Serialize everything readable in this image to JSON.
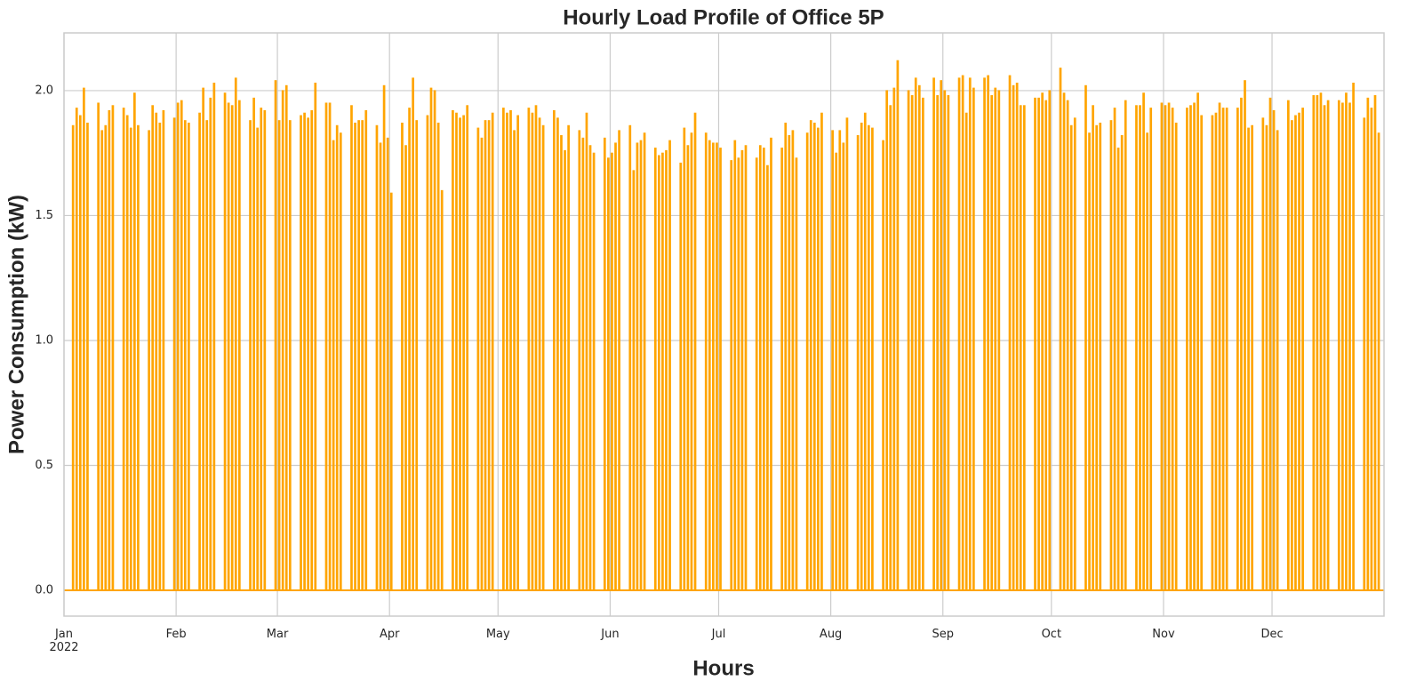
{
  "chart_data": {
    "type": "bar",
    "title": "Hourly Load Profile of Office 5P",
    "xlabel": "Hours",
    "ylabel": "Power Consumption (kW)",
    "color": "#ffa500",
    "grid": true,
    "xlim": [
      0,
      8759
    ],
    "ylim": [
      -0.103,
      2.231
    ],
    "xticks": [
      {
        "value": 0,
        "label": "Jan\n2022"
      },
      {
        "value": 744,
        "label": "Feb"
      },
      {
        "value": 1416,
        "label": "Mar"
      },
      {
        "value": 2160,
        "label": "Apr"
      },
      {
        "value": 2880,
        "label": "May"
      },
      {
        "value": 3624,
        "label": "Jun"
      },
      {
        "value": 4344,
        "label": "Jul"
      },
      {
        "value": 5088,
        "label": "Aug"
      },
      {
        "value": 5832,
        "label": "Sep"
      },
      {
        "value": 6552,
        "label": "Oct"
      },
      {
        "value": 7296,
        "label": "Nov"
      },
      {
        "value": 8016,
        "label": "Dec"
      }
    ],
    "yticks": [
      {
        "value": 0,
        "label": "0.0"
      },
      {
        "value": 0.5,
        "label": "0.5"
      },
      {
        "value": 1,
        "label": "1.0"
      },
      {
        "value": 1.5,
        "label": "1.5"
      },
      {
        "value": 2,
        "label": "2.0"
      }
    ],
    "x": [
      55,
      79,
      103,
      127,
      151,
      223,
      247,
      271,
      295,
      319,
      391,
      415,
      439,
      463,
      487,
      559,
      583,
      607,
      631,
      655,
      727,
      751,
      775,
      799,
      823,
      895,
      919,
      943,
      967,
      991,
      1063,
      1087,
      1111,
      1135,
      1159,
      1231,
      1255,
      1279,
      1303,
      1327,
      1399,
      1423,
      1447,
      1471,
      1495,
      1567,
      1591,
      1615,
      1639,
      1663,
      1735,
      1759,
      1783,
      1807,
      1831,
      1903,
      1927,
      1951,
      1975,
      1999,
      2071,
      2095,
      2119,
      2143,
      2167,
      2239,
      2263,
      2287,
      2311,
      2335,
      2407,
      2431,
      2455,
      2479,
      2503,
      2575,
      2599,
      2623,
      2647,
      2671,
      2743,
      2767,
      2791,
      2815,
      2839,
      2911,
      2935,
      2959,
      2983,
      3007,
      3079,
      3103,
      3127,
      3151,
      3175,
      3247,
      3271,
      3295,
      3319,
      3343,
      3415,
      3439,
      3463,
      3487,
      3511,
      3583,
      3607,
      3631,
      3655,
      3679,
      3751,
      3775,
      3799,
      3823,
      3847,
      3919,
      3943,
      3967,
      3991,
      4015,
      4087,
      4111,
      4135,
      4159,
      4183,
      4255,
      4279,
      4303,
      4327,
      4351,
      4423,
      4447,
      4471,
      4495,
      4519,
      4591,
      4615,
      4639,
      4663,
      4687,
      4759,
      4783,
      4807,
      4831,
      4855,
      4927,
      4951,
      4975,
      4999,
      5023,
      5095,
      5119,
      5143,
      5167,
      5191,
      5263,
      5287,
      5311,
      5335,
      5359,
      5431,
      5455,
      5479,
      5503,
      5527,
      5599,
      5623,
      5647,
      5671,
      5695,
      5767,
      5791,
      5815,
      5839,
      5863,
      5935,
      5959,
      5983,
      6007,
      6031,
      6103,
      6127,
      6151,
      6175,
      6199,
      6271,
      6295,
      6319,
      6343,
      6367,
      6439,
      6463,
      6487,
      6511,
      6535,
      6607,
      6631,
      6655,
      6679,
      6703,
      6775,
      6799,
      6823,
      6847,
      6871,
      6943,
      6967,
      6991,
      7015,
      7039,
      7111,
      7135,
      7159,
      7183,
      7207,
      7279,
      7303,
      7327,
      7351,
      7375,
      7447,
      7471,
      7495,
      7519,
      7543,
      7615,
      7639,
      7663,
      7687,
      7711,
      7783,
      7807,
      7831,
      7855,
      7879,
      7951,
      7975,
      7999,
      8023,
      8047,
      8119,
      8143,
      8167,
      8191,
      8215,
      8287,
      8311,
      8335,
      8359,
      8383,
      8455,
      8479,
      8503,
      8527,
      8551,
      8623,
      8647,
      8671,
      8695,
      8719
    ],
    "values": [
      1.86,
      1.93,
      1.9,
      2.01,
      1.87,
      1.95,
      1.84,
      1.86,
      1.92,
      1.94,
      1.93,
      1.9,
      1.85,
      1.99,
      1.86,
      1.84,
      1.94,
      1.91,
      1.87,
      1.92,
      1.89,
      1.95,
      1.96,
      1.88,
      1.87,
      1.91,
      2.01,
      1.88,
      1.97,
      2.03,
      1.99,
      1.95,
      1.94,
      2.05,
      1.96,
      1.88,
      1.97,
      1.85,
      1.93,
      1.92,
      2.04,
      1.88,
      2.0,
      2.02,
      1.88,
      1.9,
      1.91,
      1.89,
      1.92,
      2.03,
      1.95,
      1.95,
      1.8,
      1.86,
      1.83,
      1.94,
      1.87,
      1.88,
      1.88,
      1.92,
      1.86,
      1.79,
      2.02,
      1.81,
      1.59,
      1.87,
      1.78,
      1.93,
      2.05,
      1.88,
      1.9,
      2.01,
      2.0,
      1.87,
      1.6,
      1.92,
      1.91,
      1.89,
      1.9,
      1.94,
      1.85,
      1.81,
      1.88,
      1.88,
      1.91,
      1.93,
      1.91,
      1.92,
      1.84,
      1.9,
      1.93,
      1.91,
      1.94,
      1.89,
      1.86,
      1.92,
      1.89,
      1.82,
      1.76,
      1.86,
      1.84,
      1.81,
      1.91,
      1.78,
      1.75,
      1.81,
      1.73,
      1.75,
      1.79,
      1.84,
      1.86,
      1.68,
      1.79,
      1.8,
      1.83,
      1.77,
      1.74,
      1.75,
      1.76,
      1.8,
      1.71,
      1.85,
      1.78,
      1.83,
      1.91,
      1.83,
      1.8,
      1.79,
      1.79,
      1.77,
      1.72,
      1.8,
      1.73,
      1.76,
      1.78,
      1.73,
      1.78,
      1.77,
      1.7,
      1.81,
      1.77,
      1.87,
      1.82,
      1.84,
      1.73,
      1.83,
      1.88,
      1.87,
      1.85,
      1.91,
      1.84,
      1.75,
      1.84,
      1.79,
      1.89,
      1.82,
      1.87,
      1.91,
      1.86,
      1.85,
      1.8,
      2.0,
      1.94,
      2.01,
      2.12,
      2.0,
      1.98,
      2.05,
      2.02,
      1.97,
      2.05,
      1.98,
      2.04,
      2.0,
      1.98,
      2.05,
      2.06,
      1.91,
      2.05,
      2.01,
      2.05,
      2.06,
      1.98,
      2.01,
      2.0,
      2.06,
      2.02,
      2.03,
      1.94,
      1.94,
      1.97,
      1.97,
      1.99,
      1.96,
      2.0,
      2.09,
      1.99,
      1.96,
      1.86,
      1.89,
      2.02,
      1.83,
      1.94,
      1.86,
      1.87,
      1.88,
      1.93,
      1.77,
      1.82,
      1.96,
      1.94,
      1.94,
      1.99,
      1.83,
      1.93,
      1.95,
      1.94,
      1.95,
      1.93,
      1.87,
      1.93,
      1.94,
      1.95,
      1.99,
      1.9,
      1.9,
      1.91,
      1.95,
      1.93,
      1.93,
      1.93,
      1.97,
      2.04,
      1.85,
      1.86,
      1.89,
      1.86,
      1.97,
      1.92,
      1.84,
      1.96,
      1.88,
      1.9,
      1.91,
      1.93,
      1.98,
      1.98,
      1.99,
      1.94,
      1.96,
      1.96,
      1.95,
      1.99,
      1.95,
      2.03,
      1.89,
      1.97,
      1.93,
      1.98,
      1.83
    ]
  }
}
